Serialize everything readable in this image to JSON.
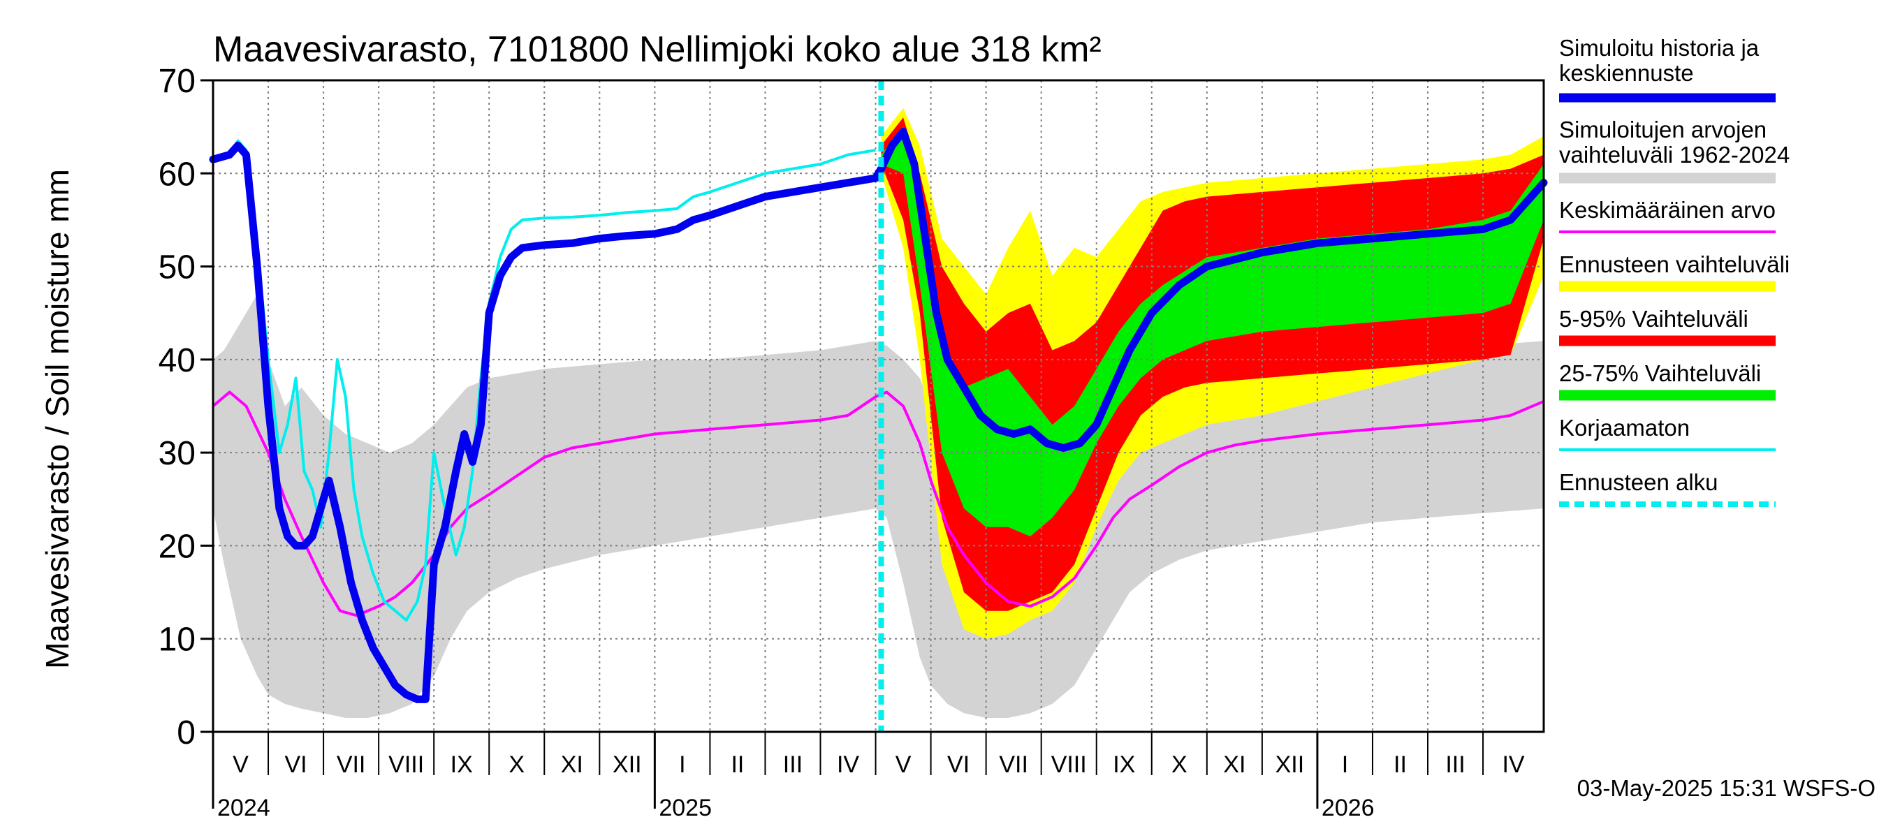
{
  "chart_data": {
    "type": "area",
    "title": "Maavesivarasto, 7101800 Nellimjoki koko alue 318 km²",
    "ylabel": "Maavesivarasto / Soil moisture   mm",
    "ylim": [
      0,
      70
    ],
    "yticks": [
      0,
      10,
      20,
      30,
      40,
      50,
      60,
      70
    ],
    "x_range_months": [
      0,
      24.1
    ],
    "forecast_start_month": 12.1,
    "months": [
      {
        "label": "V",
        "start": 0
      },
      {
        "label": "VI",
        "start": 1
      },
      {
        "label": "VII",
        "start": 2
      },
      {
        "label": "VIII",
        "start": 3
      },
      {
        "label": "IX",
        "start": 4
      },
      {
        "label": "X",
        "start": 5
      },
      {
        "label": "XI",
        "start": 6
      },
      {
        "label": "XII",
        "start": 7
      },
      {
        "label": "I",
        "start": 8
      },
      {
        "label": "II",
        "start": 9
      },
      {
        "label": "III",
        "start": 10
      },
      {
        "label": "IV",
        "start": 11
      },
      {
        "label": "V",
        "start": 12
      },
      {
        "label": "VI",
        "start": 13
      },
      {
        "label": "VII",
        "start": 14
      },
      {
        "label": "VIII",
        "start": 15
      },
      {
        "label": "IX",
        "start": 16
      },
      {
        "label": "X",
        "start": 17
      },
      {
        "label": "XI",
        "start": 18
      },
      {
        "label": "XII",
        "start": 19
      },
      {
        "label": "I",
        "start": 20
      },
      {
        "label": "II",
        "start": 21
      },
      {
        "label": "III",
        "start": 22
      },
      {
        "label": "IV",
        "start": 23
      }
    ],
    "years": [
      {
        "label": "2024",
        "at_month": 0
      },
      {
        "label": "2025",
        "at_month": 8
      },
      {
        "label": "2026",
        "at_month": 20
      }
    ],
    "legend": [
      {
        "label": "Simuloitu historia ja keskiennuste",
        "line1": "Simuloitu historia ja",
        "line2": "keskiennuste",
        "color": "#0000ee",
        "style": "thick"
      },
      {
        "label": "Simuloitujen arvojen vaihteluväli 1962-2024",
        "line1": "Simuloitujen arvojen",
        "line2": "vaihteluväli 1962-2024",
        "color": "#d3d3d3",
        "style": "band"
      },
      {
        "label": "Keskimääräinen arvo",
        "line1": "Keskimääräinen arvo",
        "line2": "",
        "color": "#ff00ff",
        "style": "thin"
      },
      {
        "label": "Ennusteen vaihteluväli",
        "line1": "Ennusteen vaihteluväli",
        "line2": "",
        "color": "#ffff00",
        "style": "band"
      },
      {
        "label": "5-95% Vaihteluväli",
        "line1": "5-95% Vaihteluväli",
        "line2": "",
        "color": "#ff0000",
        "style": "band"
      },
      {
        "label": "25-75% Vaihteluväli",
        "line1": "25-75% Vaihteluväli",
        "line2": "",
        "color": "#00ee00",
        "style": "band"
      },
      {
        "label": "Korjaamaton",
        "line1": "Korjaamaton",
        "line2": "",
        "color": "#00eeee",
        "style": "thin"
      },
      {
        "label": "Ennusteen alku",
        "line1": "Ennusteen alku",
        "line2": "",
        "color": "#00eeee",
        "style": "dashed"
      }
    ],
    "series": {
      "hist_range": {
        "name": "Simuloitujen arvojen vaihteluväli 1962-2024",
        "color": "#d3d3d3",
        "x": [
          0,
          0.2,
          0.5,
          0.8,
          1.0,
          1.3,
          1.6,
          2.0,
          2.4,
          2.8,
          3.2,
          3.6,
          4.0,
          4.3,
          4.6,
          5.0,
          5.5,
          6.0,
          7.0,
          8.0,
          9.0,
          10.0,
          11.0,
          12.0,
          12.2,
          12.5,
          12.8,
          13.0,
          13.3,
          13.6,
          14.0,
          14.4,
          14.8,
          15.2,
          15.6,
          16.0,
          16.3,
          16.6,
          17.0,
          17.5,
          18.0,
          19.0,
          20.0,
          21.0,
          22.0,
          23.0,
          24.1
        ],
        "upper": [
          40,
          41,
          44,
          47,
          40,
          35,
          37,
          34,
          32,
          31,
          30,
          31,
          33,
          35,
          37,
          38,
          38.5,
          39,
          39.5,
          40,
          40,
          40.5,
          41,
          42,
          41.5,
          40,
          38,
          35,
          33,
          31.5,
          32,
          31,
          30.5,
          31,
          32,
          33,
          34.5,
          35.5,
          37,
          38,
          39,
          39.5,
          40,
          40.5,
          41,
          41.5,
          42
        ],
        "lower": [
          24,
          18,
          10,
          6,
          4,
          3,
          2.5,
          2,
          1.5,
          1.5,
          2,
          3,
          6,
          10,
          13,
          15,
          16.5,
          17.5,
          19,
          20,
          21,
          22,
          23,
          24,
          23,
          16,
          8,
          5,
          3,
          2,
          1.5,
          1.5,
          2,
          3,
          5,
          9,
          12,
          15,
          17,
          18.5,
          19.5,
          20.5,
          21.5,
          22.5,
          23,
          23.5,
          24
        ]
      },
      "forecast_range": {
        "name": "Ennusteen vaihteluväli",
        "color": "#ffff00",
        "x": [
          12.1,
          12.5,
          12.8,
          13.2,
          13.6,
          14.0,
          14.4,
          14.8,
          15.2,
          15.6,
          16.0,
          16.4,
          16.8,
          17.2,
          17.6,
          18.0,
          19.0,
          20.0,
          21.0,
          22.0,
          23.0,
          23.5,
          24.1
        ],
        "upper": [
          64,
          67,
          63,
          53,
          50,
          47,
          52,
          56,
          49,
          52,
          51,
          54,
          57,
          58,
          58.5,
          59,
          59.5,
          60,
          60.5,
          61,
          61.5,
          62,
          64
        ],
        "lower": [
          60,
          52,
          40,
          18,
          11,
          10,
          10.5,
          12,
          13,
          16,
          22,
          27,
          30,
          31,
          32,
          33,
          34,
          35.5,
          37,
          38.5,
          40,
          40.5,
          49
        ]
      },
      "p5_95": {
        "name": "5-95% Vaihteluväli",
        "color": "#ff0000",
        "x": [
          12.1,
          12.5,
          12.8,
          13.2,
          13.6,
          14.0,
          14.4,
          14.8,
          15.2,
          15.6,
          16.0,
          16.4,
          16.8,
          17.2,
          17.6,
          18.0,
          19.0,
          20.0,
          21.0,
          22.0,
          23.0,
          23.5,
          24.1
        ],
        "upper": [
          63,
          66,
          60,
          50,
          46,
          43,
          45,
          46,
          41,
          42,
          44,
          48,
          52,
          56,
          57,
          57.5,
          58,
          58.5,
          59,
          59.5,
          60,
          60.5,
          62
        ],
        "lower": [
          61,
          55,
          45,
          23,
          15,
          13,
          13,
          14,
          15,
          18,
          24,
          30,
          34,
          36,
          37,
          37.5,
          38,
          38.5,
          39,
          39.5,
          40,
          40.5,
          53
        ]
      },
      "p25_75": {
        "name": "25-75% Vaihteluväli",
        "color": "#00ee00",
        "x": [
          12.1,
          12.5,
          12.8,
          13.2,
          13.6,
          14.0,
          14.4,
          14.8,
          15.2,
          15.6,
          16.0,
          16.4,
          16.8,
          17.2,
          17.6,
          18.0,
          19.0,
          20.0,
          21.0,
          22.0,
          23.0,
          23.5,
          24.1
        ],
        "upper": [
          62,
          65,
          58,
          42,
          37,
          38,
          39,
          36,
          33,
          35,
          39,
          43,
          46,
          48,
          49.5,
          51,
          52,
          53,
          53.5,
          54,
          55,
          56,
          61
        ],
        "lower": [
          61,
          60,
          48,
          30,
          24,
          22,
          22,
          21,
          23,
          26,
          31,
          35,
          38,
          40,
          41,
          42,
          43,
          43.5,
          44,
          44.5,
          45,
          46,
          55
        ]
      },
      "mean": {
        "name": "Keskimääräinen arvo",
        "color": "#ff00ff",
        "x": [
          0,
          0.3,
          0.6,
          1.0,
          1.3,
          1.6,
          2.0,
          2.3,
          2.6,
          3.0,
          3.3,
          3.6,
          4.0,
          4.3,
          4.6,
          5.0,
          5.5,
          6.0,
          6.5,
          7.0,
          8.0,
          9.0,
          10.0,
          11.0,
          11.5,
          12.0,
          12.2,
          12.5,
          12.8,
          13.0,
          13.3,
          13.6,
          14.0,
          14.4,
          14.8,
          15.2,
          15.6,
          16.0,
          16.3,
          16.6,
          17.0,
          17.5,
          18.0,
          18.5,
          19.0,
          20.0,
          21.0,
          22.0,
          23.0,
          23.5,
          24.1
        ],
        "values": [
          35,
          36.5,
          35,
          30,
          25,
          21,
          16,
          13,
          12.5,
          13.5,
          14.5,
          16,
          19,
          22,
          24,
          25.5,
          27.5,
          29.5,
          30.5,
          31,
          32,
          32.5,
          33,
          33.5,
          34,
          36,
          36.5,
          35,
          31,
          27,
          22,
          19,
          16,
          14,
          13.5,
          14.5,
          16.5,
          20,
          23,
          25,
          26.5,
          28.5,
          30,
          30.8,
          31.3,
          32,
          32.5,
          33,
          33.5,
          34,
          35.5
        ]
      },
      "uncorrected": {
        "name": "Korjaamaton",
        "color": "#00eeee",
        "x": [
          0,
          0.3,
          0.45,
          0.6,
          0.8,
          1.0,
          1.2,
          1.35,
          1.5,
          1.65,
          1.8,
          1.95,
          2.1,
          2.25,
          2.4,
          2.55,
          2.7,
          2.9,
          3.1,
          3.3,
          3.5,
          3.7,
          3.85,
          4.0,
          4.2,
          4.4,
          4.55,
          4.7,
          4.85,
          5.0,
          5.2,
          5.4,
          5.6,
          6.0,
          6.5,
          7.0,
          7.5,
          8.0,
          8.4,
          8.7,
          9.0,
          9.5,
          10.0,
          11.0,
          11.5,
          12.0
        ],
        "values": [
          61.5,
          62,
          63.5,
          62.5,
          52,
          40,
          30,
          33,
          38,
          28,
          26,
          22,
          30,
          40,
          36,
          26,
          21,
          17,
          14,
          13,
          12,
          14,
          18,
          30,
          24,
          19,
          22,
          28,
          38,
          46,
          51,
          54,
          55,
          55.2,
          55.3,
          55.5,
          55.8,
          56,
          56.2,
          57.5,
          58,
          59,
          60,
          61,
          62,
          62.5
        ]
      },
      "main": {
        "name": "Simuloitu historia ja keskiennuste",
        "color": "#0000ee",
        "x": [
          0,
          0.3,
          0.45,
          0.6,
          0.8,
          1.0,
          1.2,
          1.35,
          1.5,
          1.65,
          1.8,
          1.95,
          2.1,
          2.3,
          2.5,
          2.7,
          2.9,
          3.1,
          3.3,
          3.5,
          3.7,
          3.85,
          4.0,
          4.2,
          4.4,
          4.55,
          4.7,
          4.85,
          5.0,
          5.2,
          5.4,
          5.6,
          6.0,
          6.5,
          7.0,
          7.5,
          8.0,
          8.4,
          8.7,
          9.0,
          9.5,
          10.0,
          11.0,
          12.0,
          12.1,
          12.3,
          12.5,
          12.7,
          12.9,
          13.1,
          13.3,
          13.6,
          13.9,
          14.2,
          14.5,
          14.8,
          15.1,
          15.4,
          15.7,
          16.0,
          16.3,
          16.6,
          17.0,
          17.5,
          18.0,
          19.0,
          20.0,
          21.0,
          22.0,
          23.0,
          23.5,
          24.1
        ],
        "values": [
          61.5,
          62,
          63,
          62,
          50,
          35,
          24,
          21,
          20,
          20,
          21,
          24,
          27,
          22,
          16,
          12,
          9,
          7,
          5,
          4,
          3.5,
          3.5,
          18,
          22,
          28,
          32,
          29,
          33,
          45,
          49,
          51,
          52,
          52.3,
          52.5,
          53,
          53.3,
          53.5,
          54,
          55,
          55.5,
          56.5,
          57.5,
          58.5,
          59.5,
          60.5,
          63,
          64.5,
          61,
          53,
          45,
          40,
          37,
          34,
          32.5,
          32,
          32.5,
          31,
          30.5,
          31,
          33,
          37,
          41,
          45,
          48,
          50,
          51.5,
          52.5,
          53,
          53.5,
          54,
          55,
          59
        ]
      }
    }
  },
  "footer": {
    "timestamp": "03-May-2025 15:31 WSFS-O"
  }
}
